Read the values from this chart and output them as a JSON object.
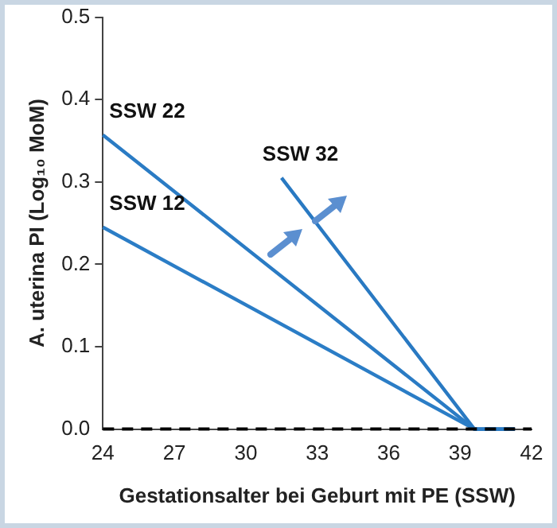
{
  "chart_data": {
    "type": "line",
    "ylabel": "A. uterina PI (Log₁₀ MoM)",
    "xlabel": "Gestationsalter bei Geburt mit PE (SSW)",
    "series": [
      {
        "name": "SSW 22",
        "color": "#2a7bc4",
        "x": [
          24,
          39.6,
          41.3
        ],
        "values": [
          0.357,
          0,
          0
        ]
      },
      {
        "name": "SSW 12",
        "color": "#2b7dc6",
        "x": [
          24,
          39.6,
          41.3
        ],
        "values": [
          0.245,
          0,
          0
        ]
      },
      {
        "name": "SSW 32",
        "color": "#2979c2",
        "x": [
          31.5,
          39.6,
          41.3
        ],
        "values": [
          0.305,
          0,
          0
        ]
      }
    ],
    "xlim": [
      24,
      42
    ],
    "xticks": [
      24,
      27,
      30,
      33,
      36,
      39,
      42
    ],
    "ylim": [
      0,
      0.5
    ],
    "yticks": [
      {
        "value": 0,
        "label": "0.0"
      },
      {
        "value": 0.1,
        "label": "0.1"
      },
      {
        "value": 0.2,
        "label": "0.2"
      },
      {
        "value": 0.3,
        "label": "0.3"
      },
      {
        "value": 0.4,
        "label": "0.4"
      },
      {
        "value": 0.5,
        "label": "0.5"
      }
    ],
    "ref_lines": [
      {
        "axis": "y",
        "value": 0,
        "color": "#000000",
        "line_style": "dashed"
      }
    ],
    "grid": false,
    "legend": false,
    "marker": "none",
    "line_style": "solid"
  }
}
